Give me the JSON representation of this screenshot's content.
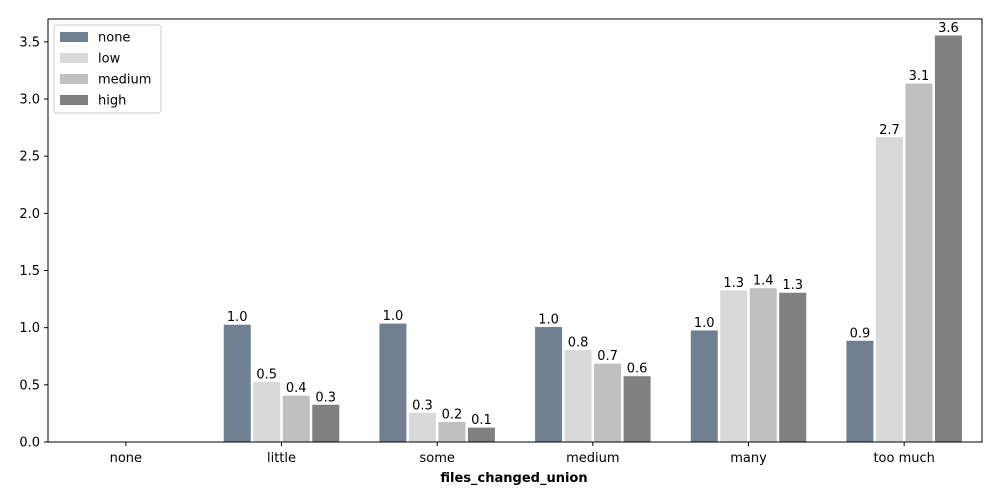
{
  "chart_data": {
    "type": "bar",
    "title": "",
    "xlabel": "files_changed_union",
    "ylabel": "",
    "categories": [
      "none",
      "little",
      "some",
      "medium",
      "many",
      "too much"
    ],
    "ylim": [
      0,
      3.7
    ],
    "yticks": [
      "0.0",
      "0.5",
      "1.0",
      "1.5",
      "2.0",
      "2.5",
      "3.0",
      "3.5"
    ],
    "grid": false,
    "legend_position": "top-left",
    "series": [
      {
        "name": "none",
        "color": "#708090",
        "values": [
          null,
          1.03,
          1.04,
          1.01,
          0.98,
          0.89
        ],
        "labels": [
          "",
          "1.0",
          "1.0",
          "1.0",
          "1.0",
          "0.9"
        ]
      },
      {
        "name": "low",
        "color": "#d9d9d9",
        "values": [
          null,
          0.53,
          0.26,
          0.81,
          1.33,
          2.67
        ],
        "labels": [
          "",
          "0.5",
          "0.3",
          "0.8",
          "1.3",
          "2.7"
        ]
      },
      {
        "name": "medium",
        "color": "#c0c0c0",
        "values": [
          null,
          0.41,
          0.18,
          0.69,
          1.35,
          3.14
        ],
        "labels": [
          "",
          "0.4",
          "0.2",
          "0.7",
          "1.4",
          "3.1"
        ]
      },
      {
        "name": "high",
        "color": "#808080",
        "values": [
          null,
          0.33,
          0.13,
          0.58,
          1.31,
          3.56
        ],
        "labels": [
          "",
          "0.3",
          "0.1",
          "0.6",
          "1.3",
          "3.6"
        ]
      }
    ]
  }
}
